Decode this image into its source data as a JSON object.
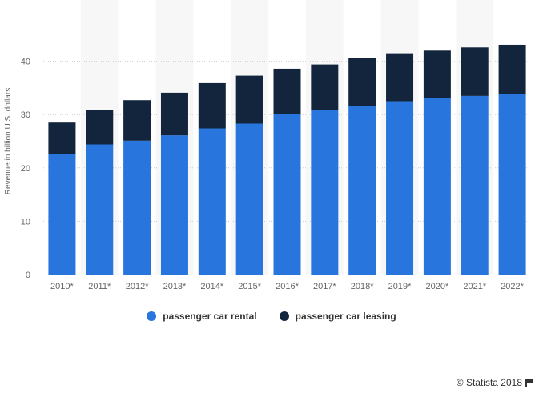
{
  "chart_data": {
    "type": "bar",
    "stacked": true,
    "categories": [
      "2010*",
      "2011*",
      "2012*",
      "2013*",
      "2014*",
      "2015*",
      "2016*",
      "2017*",
      "2018*",
      "2019*",
      "2020*",
      "2021*",
      "2022*"
    ],
    "series": [
      {
        "name": "passenger car rental",
        "color": "#2876dd",
        "values": [
          22.6,
          24.4,
          25.1,
          26.1,
          27.4,
          28.3,
          30.1,
          30.8,
          31.6,
          32.5,
          33.1,
          33.5,
          33.8
        ]
      },
      {
        "name": "passenger car leasing",
        "color": "#12253d",
        "values": [
          5.9,
          6.5,
          7.6,
          8.0,
          8.5,
          9.0,
          8.5,
          8.6,
          9.0,
          9.0,
          8.9,
          9.1,
          9.3
        ]
      }
    ],
    "ylabel": "Revenue in billion U.S. dollars",
    "ylim": [
      0,
      50
    ],
    "yticks": [
      0,
      10,
      20,
      30,
      40
    ],
    "grid": true,
    "legend_position": "bottom"
  },
  "credit": "© Statista 2018"
}
